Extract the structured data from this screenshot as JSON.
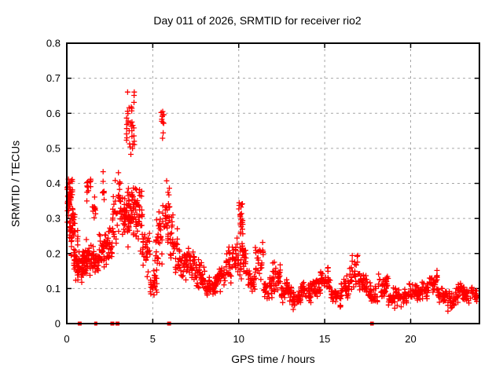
{
  "chart_data": {
    "type": "scatter",
    "title": "Day 011 of 2026, SRMTID for receiver rio2",
    "xlabel": "GPS time / hours",
    "ylabel": "SRMTID / TECUs",
    "xlim": [
      0,
      24
    ],
    "ylim": [
      0,
      0.8
    ],
    "xticks": [
      0,
      5,
      10,
      15,
      20
    ],
    "yticks": [
      0,
      0.1,
      0.2,
      0.3,
      0.4,
      0.5,
      0.6,
      0.7,
      0.8
    ],
    "grid": true,
    "legend": "none",
    "background_color": "#ffffff",
    "axis_color": "#000000",
    "grid_color": "#a6a6a6",
    "marker_color": "#ff0000",
    "series": [
      {
        "name": "srmtid-crosses",
        "marker": "plus",
        "color": "#ff0000",
        "seed": 20261,
        "comment": "density_bands = [x0_hours, x1_hours, y_min_TECU, y_max_TECU, n_points] read from plot",
        "density_bands": [
          [
            0.0,
            0.15,
            0.22,
            0.42,
            28
          ],
          [
            0.05,
            0.35,
            0.28,
            0.48,
            30
          ],
          [
            0.15,
            0.5,
            0.16,
            0.38,
            40
          ],
          [
            0.4,
            0.75,
            0.1,
            0.28,
            35
          ],
          [
            0.6,
            0.95,
            0.09,
            0.22,
            30
          ],
          [
            0.9,
            1.15,
            0.1,
            0.26,
            28
          ],
          [
            1.15,
            1.4,
            0.33,
            0.47,
            12
          ],
          [
            1.05,
            1.45,
            0.1,
            0.26,
            30
          ],
          [
            1.45,
            1.7,
            0.28,
            0.38,
            10
          ],
          [
            1.4,
            1.85,
            0.09,
            0.26,
            34
          ],
          [
            1.85,
            2.25,
            0.13,
            0.3,
            30
          ],
          [
            2.05,
            2.2,
            0.3,
            0.44,
            8
          ],
          [
            2.25,
            2.65,
            0.14,
            0.3,
            32
          ],
          [
            2.65,
            3.25,
            0.18,
            0.45,
            45
          ],
          [
            3.25,
            3.65,
            0.18,
            0.42,
            40
          ],
          [
            3.45,
            3.95,
            0.42,
            0.71,
            34
          ],
          [
            3.55,
            4.05,
            0.2,
            0.45,
            45
          ],
          [
            4.0,
            4.4,
            0.15,
            0.42,
            36
          ],
          [
            4.4,
            4.85,
            0.1,
            0.32,
            34
          ],
          [
            4.85,
            5.25,
            0.03,
            0.22,
            28
          ],
          [
            5.15,
            5.55,
            0.12,
            0.35,
            30
          ],
          [
            5.48,
            5.68,
            0.5,
            0.66,
            11
          ],
          [
            5.55,
            6.0,
            0.18,
            0.46,
            32
          ],
          [
            6.0,
            6.45,
            0.14,
            0.34,
            32
          ],
          [
            6.45,
            6.95,
            0.11,
            0.26,
            32
          ],
          [
            6.95,
            7.45,
            0.1,
            0.24,
            36
          ],
          [
            7.45,
            8.05,
            0.08,
            0.2,
            40
          ],
          [
            8.05,
            8.65,
            0.06,
            0.16,
            40
          ],
          [
            8.65,
            9.25,
            0.08,
            0.18,
            40
          ],
          [
            9.25,
            9.65,
            0.09,
            0.24,
            30
          ],
          [
            9.65,
            10.0,
            0.1,
            0.26,
            24
          ],
          [
            10.0,
            10.25,
            0.2,
            0.41,
            22
          ],
          [
            10.05,
            10.45,
            0.08,
            0.3,
            30
          ],
          [
            10.45,
            10.95,
            0.06,
            0.19,
            32
          ],
          [
            10.95,
            11.45,
            0.08,
            0.28,
            28
          ],
          [
            11.45,
            11.95,
            0.05,
            0.16,
            32
          ],
          [
            11.95,
            12.45,
            0.06,
            0.22,
            32
          ],
          [
            12.45,
            12.95,
            0.04,
            0.14,
            36
          ],
          [
            12.95,
            13.55,
            0.03,
            0.12,
            40
          ],
          [
            13.55,
            14.15,
            0.05,
            0.13,
            40
          ],
          [
            14.15,
            14.75,
            0.05,
            0.15,
            40
          ],
          [
            14.75,
            15.35,
            0.06,
            0.17,
            38
          ],
          [
            15.35,
            15.95,
            0.04,
            0.12,
            36
          ],
          [
            15.95,
            16.45,
            0.06,
            0.15,
            34
          ],
          [
            16.45,
            17.0,
            0.07,
            0.21,
            32
          ],
          [
            17.0,
            17.55,
            0.06,
            0.16,
            32
          ],
          [
            17.55,
            18.1,
            0.04,
            0.13,
            34
          ],
          [
            18.1,
            18.7,
            0.05,
            0.16,
            36
          ],
          [
            18.7,
            19.3,
            0.03,
            0.11,
            36
          ],
          [
            19.3,
            19.9,
            0.04,
            0.11,
            36
          ],
          [
            19.9,
            20.5,
            0.05,
            0.13,
            36
          ],
          [
            20.5,
            21.0,
            0.06,
            0.14,
            32
          ],
          [
            21.0,
            21.55,
            0.07,
            0.17,
            32
          ],
          [
            21.55,
            22.15,
            0.04,
            0.12,
            34
          ],
          [
            22.15,
            22.65,
            0.03,
            0.11,
            30
          ],
          [
            22.65,
            23.15,
            0.05,
            0.13,
            36
          ],
          [
            23.15,
            23.6,
            0.05,
            0.12,
            30
          ],
          [
            23.6,
            23.9,
            0.06,
            0.11,
            16
          ]
        ]
      },
      {
        "name": "zero-line-flags",
        "marker": "filled-square",
        "color": "#ff0000",
        "comment": "points = [x_hours, y_TECU, marker_width_px]",
        "points": [
          [
            0.75,
            0,
            5
          ],
          [
            1.65,
            0,
            2.5
          ],
          [
            1.72,
            0,
            2.5
          ],
          [
            2.65,
            0,
            5
          ],
          [
            2.95,
            0,
            5
          ],
          [
            5.95,
            0,
            5
          ],
          [
            17.7,
            0,
            2.5
          ],
          [
            17.8,
            0,
            2.5
          ]
        ]
      }
    ]
  }
}
